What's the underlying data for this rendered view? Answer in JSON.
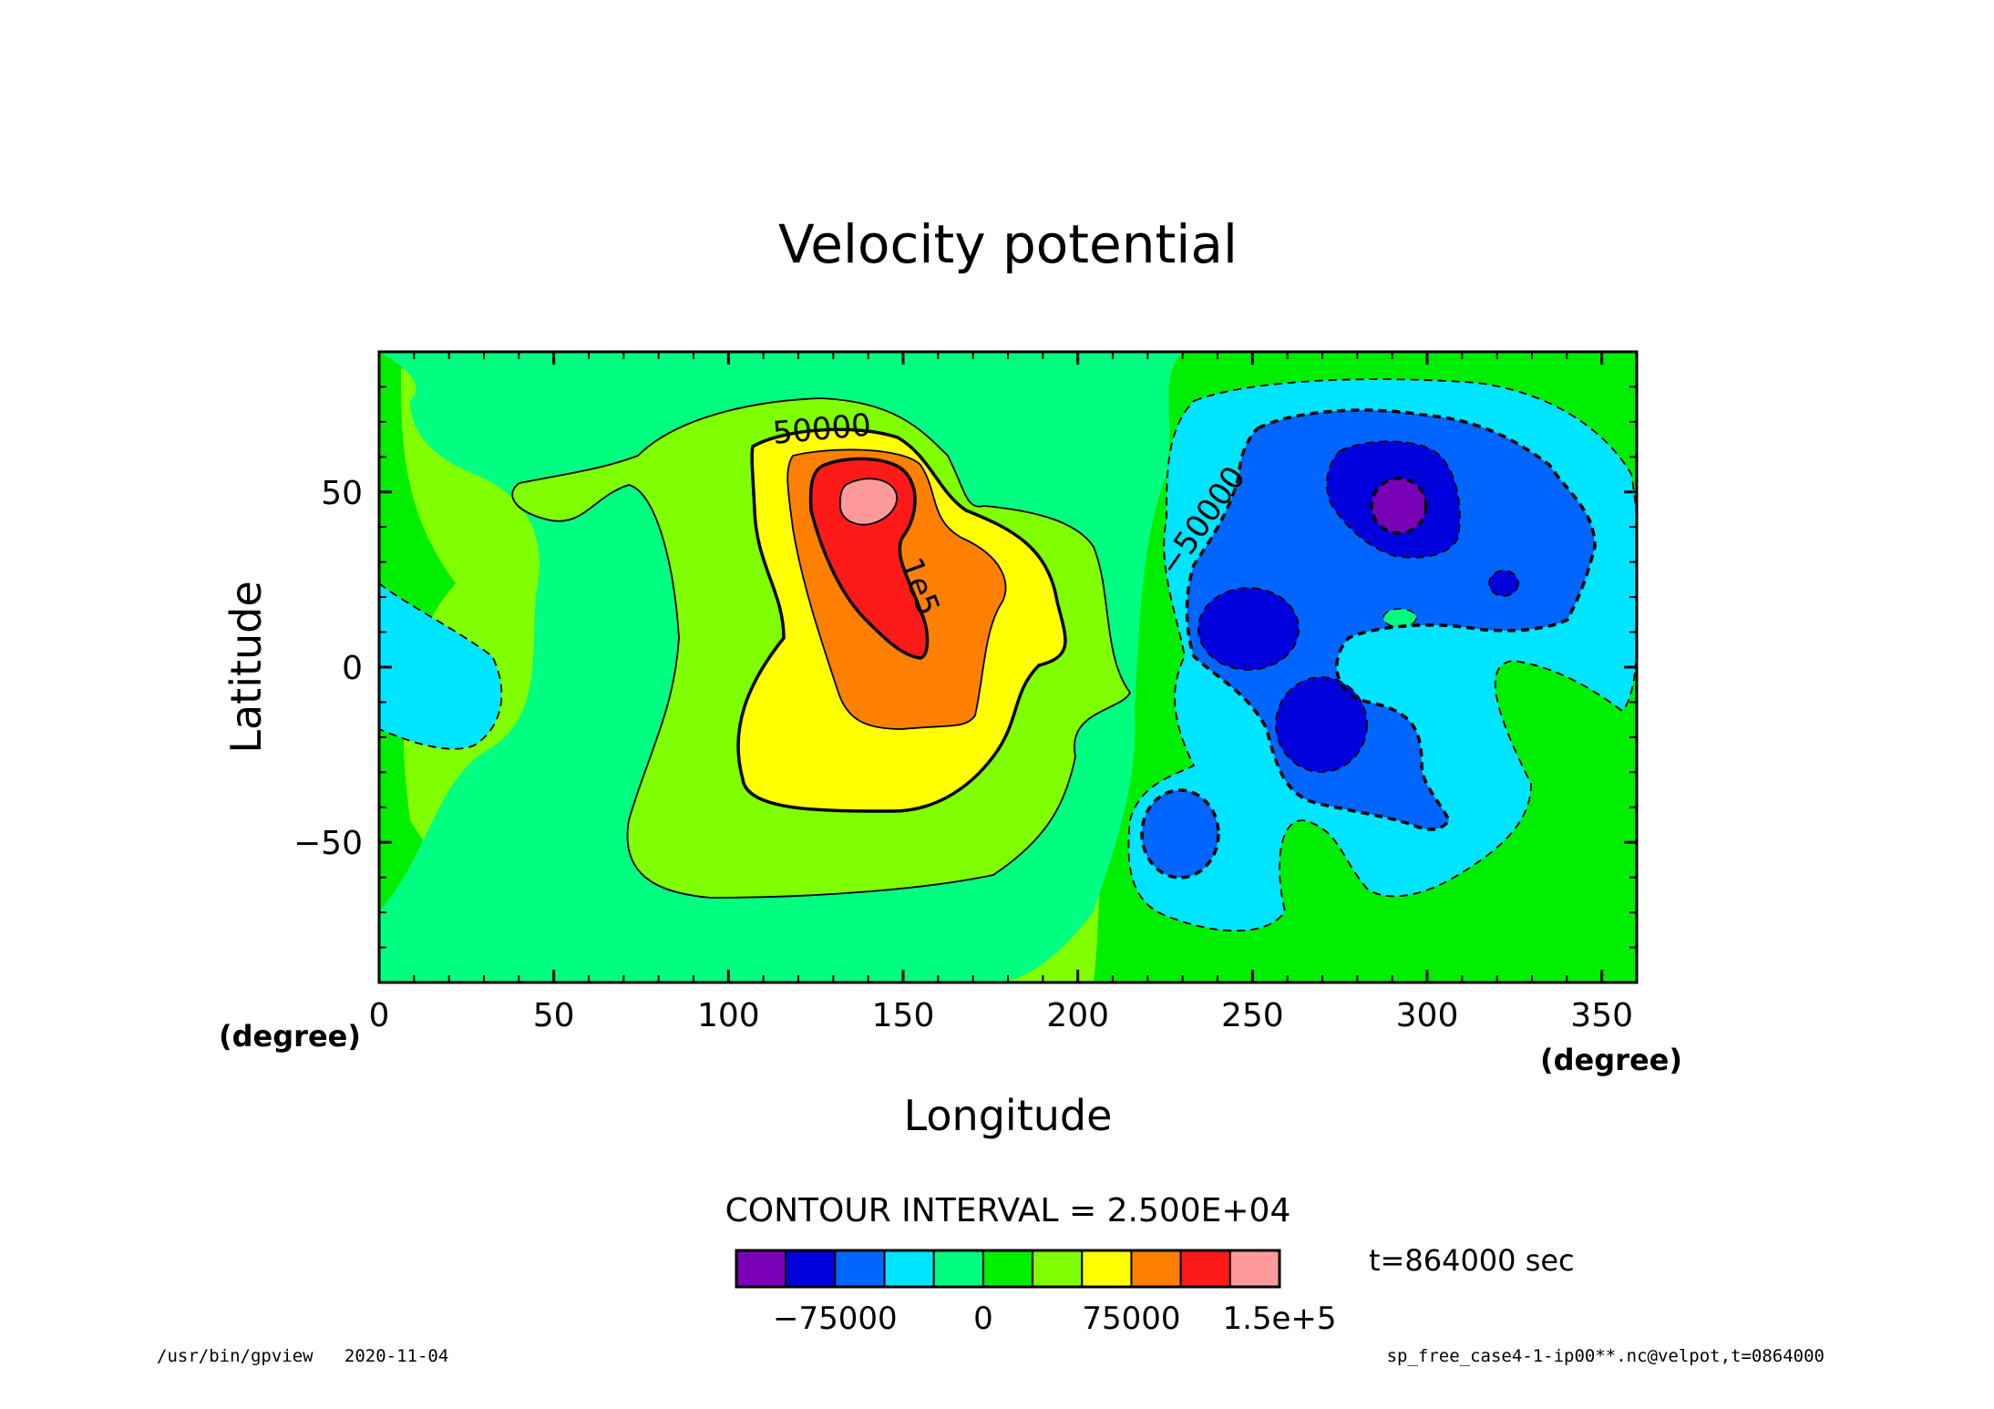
{
  "chart_data": {
    "type": "heatmap",
    "subtype": "filled contour map",
    "title": "Velocity potential",
    "xlabel": "Longitude",
    "ylabel": "Latitude",
    "x_unit": "(degree)",
    "y_unit": "(degree)",
    "xlim": [
      0,
      360
    ],
    "ylim": [
      -90,
      90
    ],
    "x_ticks": [
      0,
      50,
      100,
      150,
      200,
      250,
      300,
      350
    ],
    "y_ticks": [
      -50,
      0,
      50
    ],
    "contour_interval_label": "CONTOUR INTERVAL = 2.500E+04",
    "contour_interval": 25000,
    "contour_labels": [
      {
        "text": "50000",
        "value": 50000,
        "lon": 127,
        "lat": 65
      },
      {
        "text": "1e5",
        "value": 100000,
        "lon": 152,
        "lat": 22
      },
      {
        "text": "−50000",
        "value": -50000,
        "lon": 238,
        "lat": 40
      }
    ],
    "levels": [
      -125000,
      -100000,
      -75000,
      -50000,
      -25000,
      0,
      25000,
      50000,
      75000,
      100000,
      125000,
      150000
    ],
    "colorbar_colors": [
      "#7a00b8",
      "#0000dd",
      "#0066ff",
      "#00e5ff",
      "#00ff80",
      "#00ee00",
      "#80ff00",
      "#ffff00",
      "#ff8000",
      "#ff1a1a",
      "#ff9a9a"
    ],
    "colorbar_tick_labels": [
      {
        "text": "−75000",
        "value": -75000
      },
      {
        "text": "0",
        "value": 0
      },
      {
        "text": "75000",
        "value": 75000
      },
      {
        "text": "1.5e+5",
        "value": 150000
      }
    ],
    "time_label": "t=864000 sec",
    "features": [
      {
        "kind": "max",
        "lon": 140,
        "lat": 48,
        "value_gt": 125000
      },
      {
        "kind": "min",
        "lon": 290,
        "lat": 45,
        "value_lt": -100000
      }
    ]
  },
  "footer": {
    "left": "/usr/bin/gpview   2020-11-04",
    "right": "sp_free_case4-1-ip00**.nc@velpot,t=0864000"
  }
}
